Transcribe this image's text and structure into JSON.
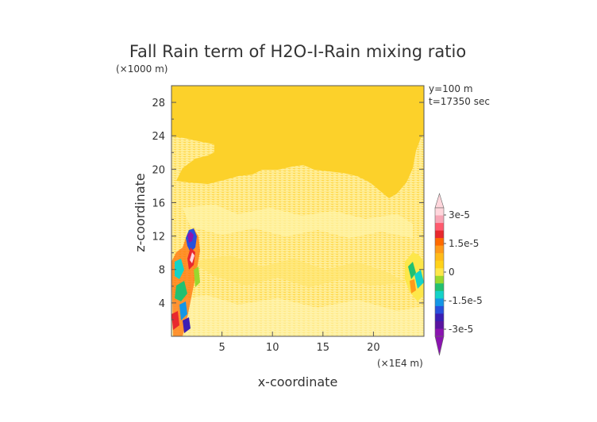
{
  "chart_data": {
    "type": "heatmap",
    "title": "Fall Rain term of H2O-I-Rain mixing ratio",
    "xlabel": "x-coordinate",
    "ylabel": "z-coordinate",
    "x_unit": "(×1E4 m)",
    "y_unit": "(×1000 m)",
    "annotations": [
      "y=100 m",
      "t=17350 sec"
    ],
    "xlim": [
      0,
      25
    ],
    "ylim": [
      0,
      30
    ],
    "x_ticks": [
      5,
      10,
      15,
      20
    ],
    "y_ticks": [
      4,
      8,
      12,
      16,
      20,
      24,
      28
    ],
    "background_value": 0,
    "regions": [
      {
        "level": "weak positive (light yellow)",
        "x_range": [
          0,
          25
        ],
        "z_range": [
          0,
          18
        ],
        "note": "cloud layer extending to ~22-24 at left and right edges"
      },
      {
        "level": "strong mixed positive/negative (red, magenta, blue, cyan)",
        "x_range": [
          0.5,
          3
        ],
        "z_range": [
          0,
          13
        ]
      },
      {
        "level": "moderate mixed (green, cyan, orange)",
        "x_range": [
          23,
          25
        ],
        "z_range": [
          4,
          10
        ]
      }
    ],
    "colorbar": {
      "labels": [
        "3e-5",
        "1.5e-5",
        "0",
        "-1.5e-5",
        "-3e-5"
      ],
      "label_values": [
        3e-05,
        1.5e-05,
        0,
        -1.5e-05,
        -3e-05
      ],
      "colors_top_to_bottom": [
        "#ffd6dc",
        "#f7a6b6",
        "#ff5a6e",
        "#e8282e",
        "#ff6a00",
        "#ff9a1a",
        "#ffbb1a",
        "#ffd21a",
        "#fde74a",
        "#9ad82e",
        "#22c070",
        "#14d2c8",
        "#1496e6",
        "#2850dc",
        "#3a1eb4",
        "#5a14a0",
        "#8a14b0"
      ],
      "extend": "both"
    }
  }
}
